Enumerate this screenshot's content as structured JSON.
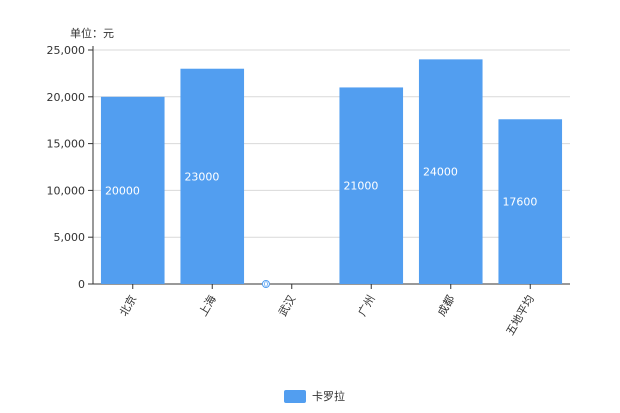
{
  "chart_data": {
    "type": "bar",
    "unit_label": "单位：元",
    "categories": [
      "北京",
      "上海",
      "武汉",
      "广州",
      "成都",
      "五地平均"
    ],
    "series": [
      {
        "name": "卡罗拉",
        "values": [
          20000,
          23000,
          0,
          21000,
          24000,
          17600
        ],
        "color": "#529ef0"
      }
    ],
    "data_labels": [
      "20000",
      "23000",
      "0",
      "21000",
      "24000",
      "17600"
    ],
    "y_ticks": [
      "0",
      "5,000",
      "10,000",
      "15,000",
      "20,000",
      "25,000"
    ],
    "ylim": [
      0,
      25000
    ],
    "grid": true,
    "legend_position": "bottom-center"
  }
}
